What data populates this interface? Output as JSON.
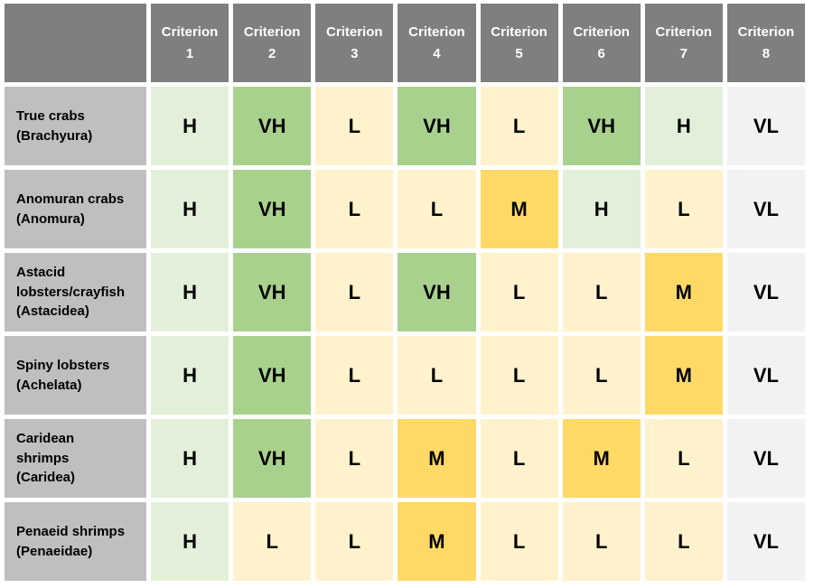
{
  "colors": {
    "page_bg": "#ffffff",
    "header_bg": "#7f7f7f",
    "header_text": "#ffffff",
    "row_label_bg": "#bfbfbf",
    "label_text": "#000000",
    "value_text": "#000000"
  },
  "chart_data": {
    "type": "heatmap",
    "columns": [
      "Criterion 1",
      "Criterion 2",
      "Criterion 3",
      "Criterion 4",
      "Criterion 5",
      "Criterion 6",
      "Criterion 7",
      "Criterion 8"
    ],
    "value_scale": [
      "VL",
      "L",
      "M",
      "H",
      "VH"
    ],
    "value_colors": {
      "VH": "#a9d18e",
      "H": "#e2f0d9",
      "M": "#ffd966",
      "L": "#fff2cc",
      "VL": "#f2f2f2"
    },
    "rows": [
      {
        "label_lines": [
          "True crabs",
          "(Brachyura)"
        ],
        "values": [
          "H",
          "VH",
          "L",
          "VH",
          "L",
          "VH",
          "H",
          "VL"
        ]
      },
      {
        "label_lines": [
          "Anomuran crabs",
          "(Anomura)"
        ],
        "values": [
          "H",
          "VH",
          "L",
          "L",
          "M",
          "H",
          "L",
          "VL"
        ]
      },
      {
        "label_lines": [
          "Astacid",
          "lobsters/crayfish",
          "(Astacidea)"
        ],
        "values": [
          "H",
          "VH",
          "L",
          "VH",
          "L",
          "L",
          "M",
          "VL"
        ]
      },
      {
        "label_lines": [
          "Spiny lobsters",
          "(Achelata)"
        ],
        "values": [
          "H",
          "VH",
          "L",
          "L",
          "L",
          "L",
          "M",
          "VL"
        ]
      },
      {
        "label_lines": [
          "Caridean",
          "shrimps",
          "(Caridea)"
        ],
        "values": [
          "H",
          "VH",
          "L",
          "M",
          "L",
          "M",
          "L",
          "VL"
        ]
      },
      {
        "label_lines": [
          "Penaeid shrimps",
          "(Penaeidae)"
        ],
        "values": [
          "H",
          "L",
          "L",
          "M",
          "L",
          "L",
          "L",
          "VL"
        ]
      }
    ]
  }
}
